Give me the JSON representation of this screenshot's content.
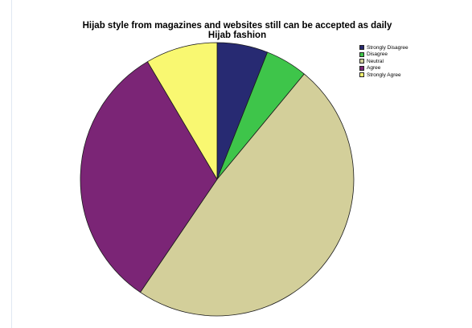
{
  "chart_data": {
    "type": "pie",
    "title": "Hijab style from magazines and websites still can be accepted as daily Hijab fashion",
    "categories": [
      "Strongly Disagree",
      "Disagree",
      "Neutral",
      "Agree",
      "Strongly Agree"
    ],
    "values": [
      6.0,
      5.0,
      48.5,
      32.0,
      8.5
    ],
    "colors": [
      "#272a72",
      "#3ec54a",
      "#d3cf9a",
      "#7b2576",
      "#f9f871"
    ],
    "legend_position": "top-right",
    "start_angle": "12 o'clock",
    "direction": "clockwise"
  }
}
